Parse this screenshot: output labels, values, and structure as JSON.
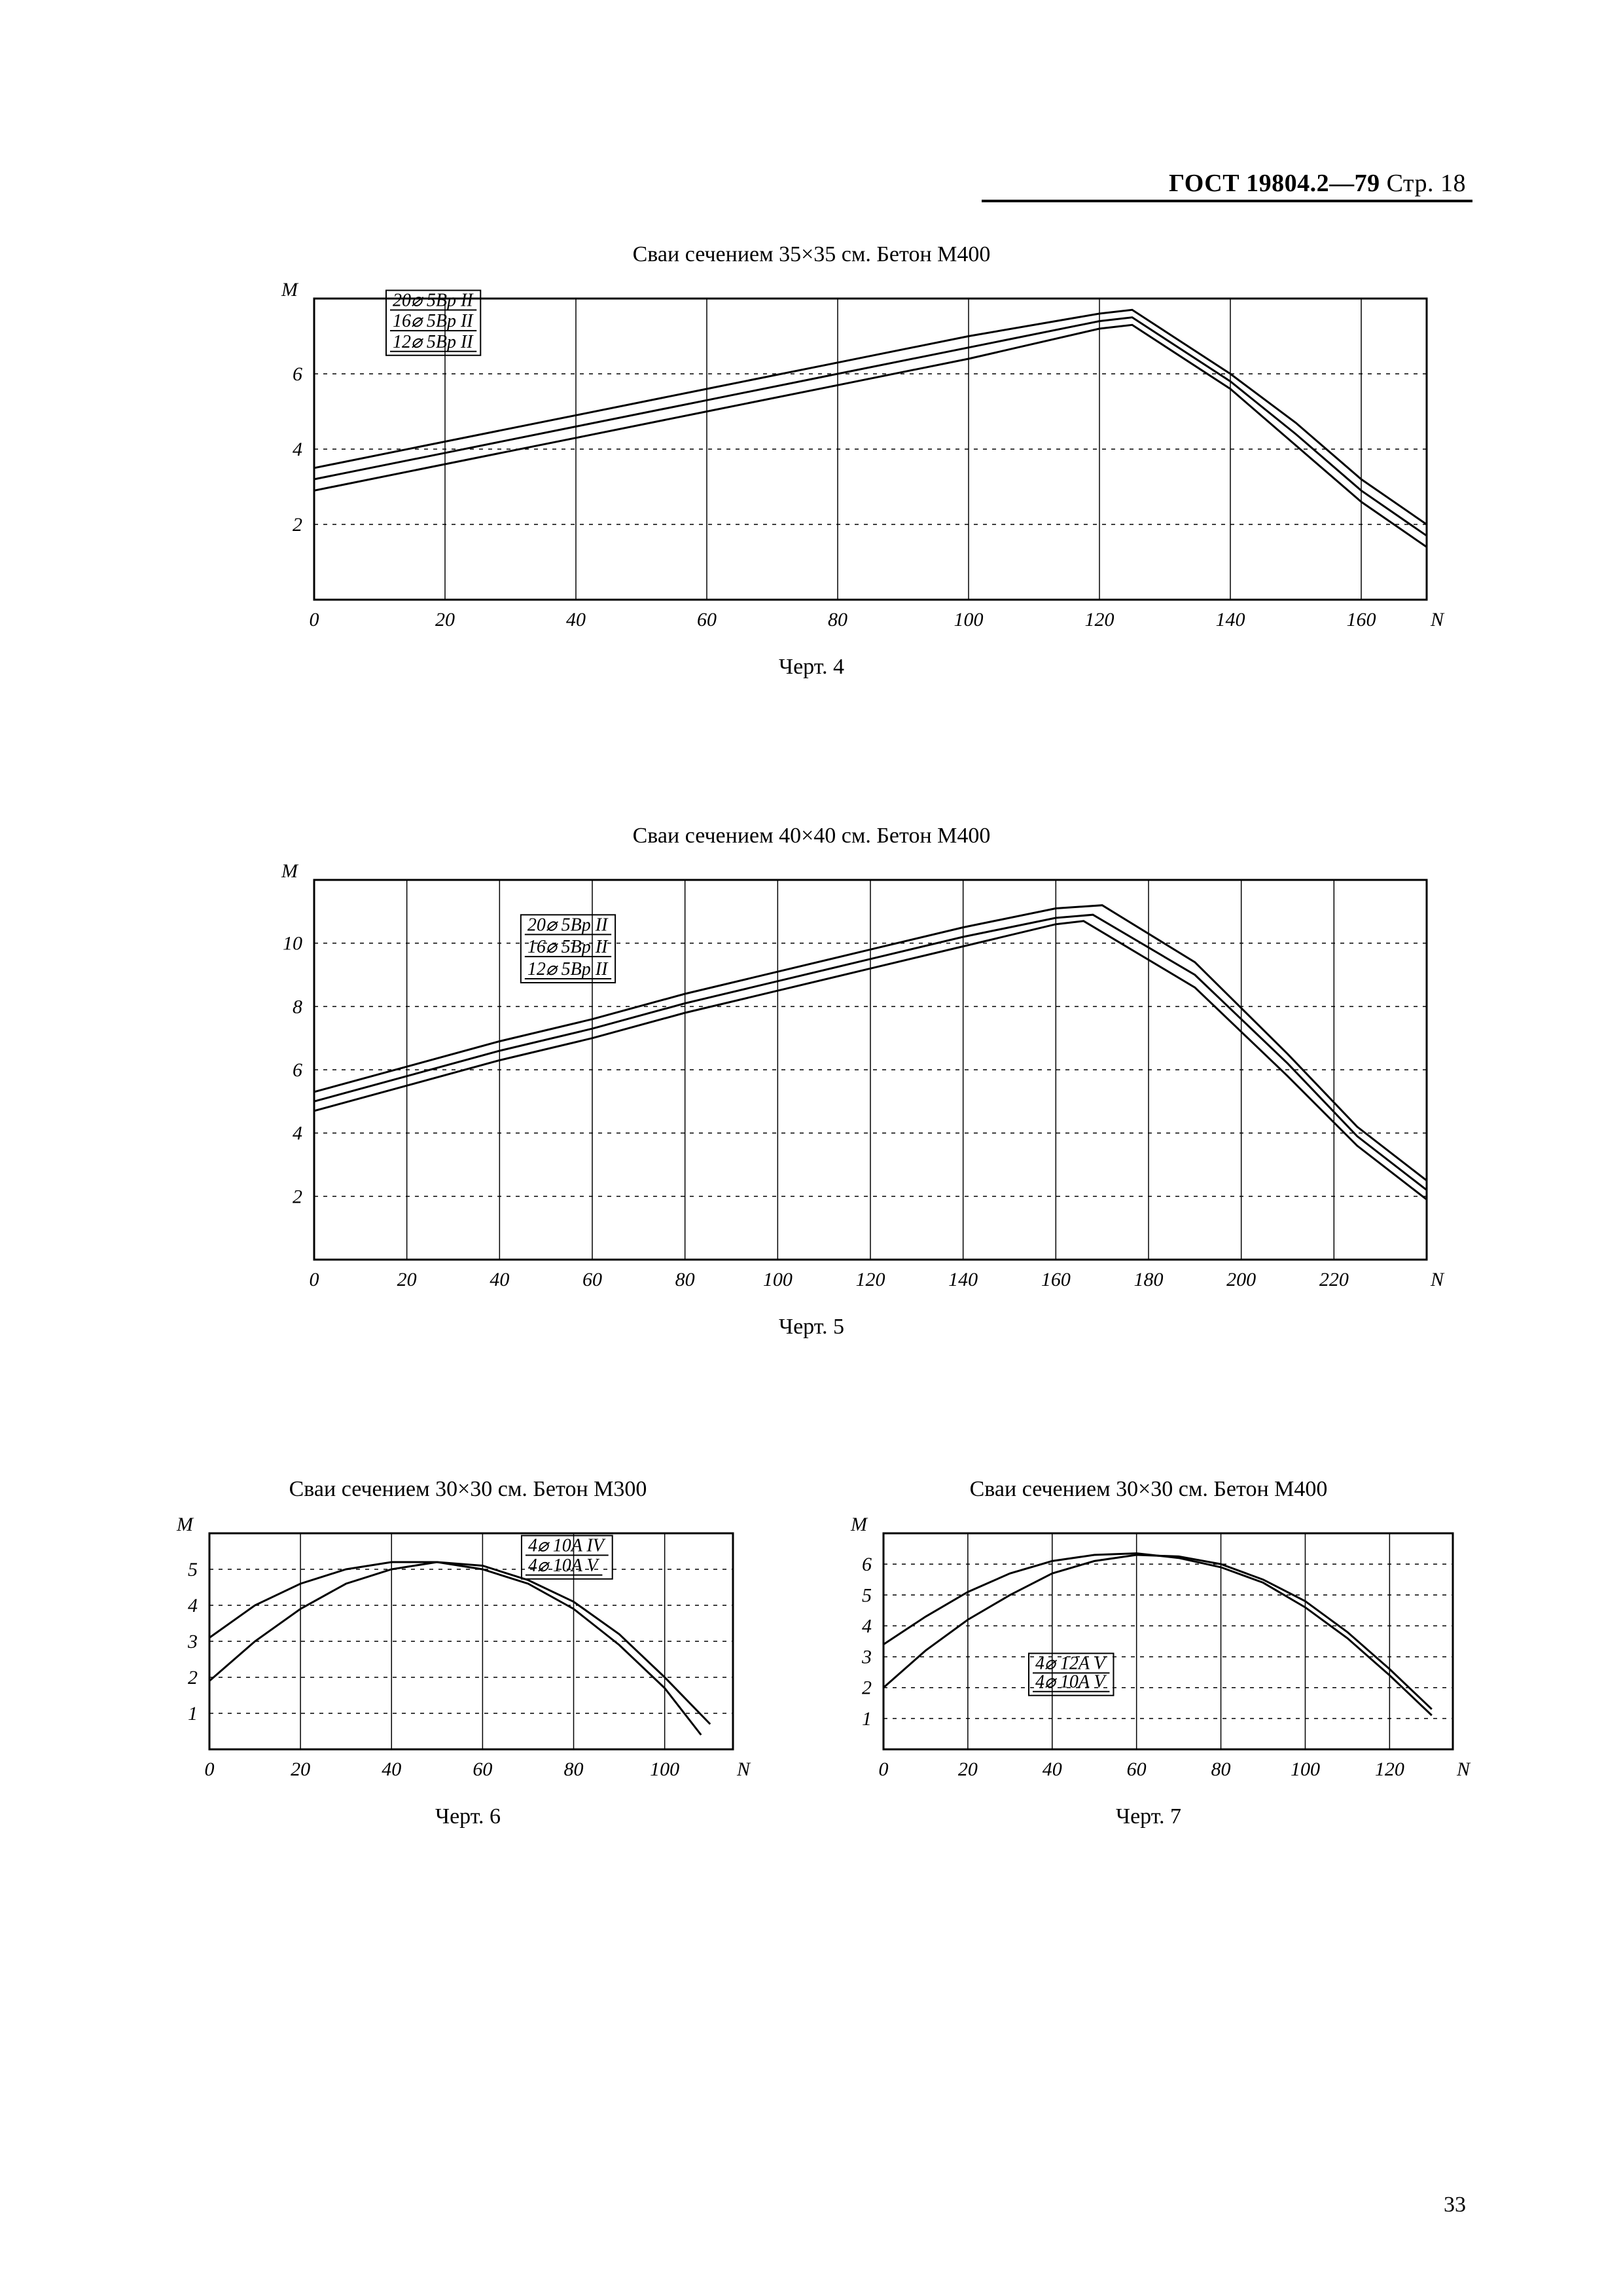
{
  "header": {
    "standard": "ГОСТ 19804.2—79",
    "page_label": "Стр. 18"
  },
  "page_number": "33",
  "colors": {
    "ink": "#000000",
    "paper": "#ffffff",
    "grid": "#000000"
  },
  "chart4": {
    "type": "line",
    "title": "Сваи сечением 35×35 см. Бетон М400",
    "caption": "Черт. 4",
    "x_axis": {
      "label": "N",
      "min": 0,
      "max": 170,
      "ticks": [
        0,
        20,
        40,
        60,
        80,
        100,
        120,
        140,
        160
      ]
    },
    "y_axis": {
      "label": "M",
      "min": 0,
      "max": 8,
      "ticks": [
        2,
        4,
        6
      ]
    },
    "grid_color": "#000000",
    "line_width": 3,
    "legend": {
      "x": 12,
      "y_top": 7.8,
      "row_h": 0.55,
      "items": [
        "20⌀ 5Вр II",
        "16⌀ 5Вр II",
        "12⌀ 5Вр II"
      ]
    },
    "series": [
      {
        "name": "20⌀5ВрII",
        "points": [
          [
            0,
            3.5
          ],
          [
            20,
            4.2
          ],
          [
            40,
            4.9
          ],
          [
            60,
            5.6
          ],
          [
            80,
            6.3
          ],
          [
            100,
            7.0
          ],
          [
            120,
            7.6
          ],
          [
            125,
            7.7
          ],
          [
            140,
            6.0
          ],
          [
            150,
            4.7
          ],
          [
            160,
            3.2
          ],
          [
            170,
            2.0
          ]
        ]
      },
      {
        "name": "16⌀5ВрII",
        "points": [
          [
            0,
            3.2
          ],
          [
            20,
            3.9
          ],
          [
            40,
            4.6
          ],
          [
            60,
            5.3
          ],
          [
            80,
            6.0
          ],
          [
            100,
            6.7
          ],
          [
            120,
            7.4
          ],
          [
            125,
            7.5
          ],
          [
            140,
            5.8
          ],
          [
            150,
            4.4
          ],
          [
            160,
            2.9
          ],
          [
            170,
            1.7
          ]
        ]
      },
      {
        "name": "12⌀5ВрII",
        "points": [
          [
            0,
            2.9
          ],
          [
            20,
            3.6
          ],
          [
            40,
            4.3
          ],
          [
            60,
            5.0
          ],
          [
            80,
            5.7
          ],
          [
            100,
            6.4
          ],
          [
            120,
            7.2
          ],
          [
            125,
            7.3
          ],
          [
            140,
            5.6
          ],
          [
            150,
            4.1
          ],
          [
            160,
            2.6
          ],
          [
            170,
            1.4
          ]
        ]
      }
    ]
  },
  "chart5": {
    "type": "line",
    "title": "Сваи сечением 40×40 см. Бетон М400",
    "caption": "Черт. 5",
    "x_axis": {
      "label": "N",
      "min": 0,
      "max": 240,
      "ticks": [
        0,
        20,
        40,
        60,
        80,
        100,
        120,
        140,
        160,
        180,
        200,
        220
      ]
    },
    "y_axis": {
      "label": "M",
      "min": 0,
      "max": 12,
      "ticks": [
        2,
        4,
        6,
        8,
        10
      ]
    },
    "grid_color": "#000000",
    "line_width": 3,
    "legend": {
      "x": 46,
      "y_top": 10.4,
      "row_h": 0.7,
      "items": [
        "20⌀ 5Вр II",
        "16⌀ 5Вр II",
        "12⌀ 5Вр II"
      ]
    },
    "series": [
      {
        "name": "20⌀5ВрII",
        "points": [
          [
            0,
            5.3
          ],
          [
            20,
            6.1
          ],
          [
            40,
            6.9
          ],
          [
            60,
            7.6
          ],
          [
            80,
            8.4
          ],
          [
            100,
            9.1
          ],
          [
            120,
            9.8
          ],
          [
            140,
            10.5
          ],
          [
            160,
            11.1
          ],
          [
            170,
            11.2
          ],
          [
            190,
            9.4
          ],
          [
            210,
            6.5
          ],
          [
            225,
            4.2
          ],
          [
            240,
            2.5
          ]
        ]
      },
      {
        "name": "16⌀5ВрII",
        "points": [
          [
            0,
            5.0
          ],
          [
            20,
            5.8
          ],
          [
            40,
            6.6
          ],
          [
            60,
            7.3
          ],
          [
            80,
            8.1
          ],
          [
            100,
            8.8
          ],
          [
            120,
            9.5
          ],
          [
            140,
            10.2
          ],
          [
            160,
            10.8
          ],
          [
            168,
            10.9
          ],
          [
            190,
            9.0
          ],
          [
            210,
            6.2
          ],
          [
            225,
            3.9
          ],
          [
            240,
            2.2
          ]
        ]
      },
      {
        "name": "12⌀5ВрII",
        "points": [
          [
            0,
            4.7
          ],
          [
            20,
            5.5
          ],
          [
            40,
            6.3
          ],
          [
            60,
            7.0
          ],
          [
            80,
            7.8
          ],
          [
            100,
            8.5
          ],
          [
            120,
            9.2
          ],
          [
            140,
            9.9
          ],
          [
            160,
            10.6
          ],
          [
            166,
            10.7
          ],
          [
            190,
            8.6
          ],
          [
            210,
            5.8
          ],
          [
            225,
            3.6
          ],
          [
            240,
            1.9
          ]
        ]
      }
    ]
  },
  "chart6": {
    "type": "line",
    "title": "Сваи сечением 30×30 см. Бетон М300",
    "caption": "Черт. 6",
    "x_axis": {
      "label": "N",
      "min": 0,
      "max": 115,
      "ticks": [
        0,
        20,
        40,
        60,
        80,
        100
      ]
    },
    "y_axis": {
      "label": "M",
      "min": 0,
      "max": 6,
      "ticks": [
        1,
        2,
        3,
        4,
        5
      ]
    },
    "grid_color": "#000000",
    "line_width": 3,
    "legend": {
      "x": 70,
      "y_top": 5.5,
      "row_h": 0.55,
      "items": [
        "4⌀ 10A IV",
        "4⌀ 10A V"
      ]
    },
    "series": [
      {
        "name": "4⌀10AIV",
        "points": [
          [
            0,
            3.1
          ],
          [
            10,
            4.0
          ],
          [
            20,
            4.6
          ],
          [
            30,
            5.0
          ],
          [
            40,
            5.2
          ],
          [
            50,
            5.2
          ],
          [
            60,
            5.0
          ],
          [
            70,
            4.6
          ],
          [
            80,
            3.9
          ],
          [
            90,
            2.9
          ],
          [
            100,
            1.7
          ],
          [
            108,
            0.4
          ]
        ]
      },
      {
        "name": "4⌀10AV",
        "points": [
          [
            0,
            1.9
          ],
          [
            10,
            3.0
          ],
          [
            20,
            3.9
          ],
          [
            30,
            4.6
          ],
          [
            40,
            5.0
          ],
          [
            50,
            5.2
          ],
          [
            60,
            5.1
          ],
          [
            70,
            4.7
          ],
          [
            80,
            4.1
          ],
          [
            90,
            3.2
          ],
          [
            100,
            2.0
          ],
          [
            110,
            0.7
          ]
        ]
      }
    ]
  },
  "chart7": {
    "type": "line",
    "title": "Сваи сечением 30×30 см. Бетон М400",
    "caption": "Черт. 7",
    "x_axis": {
      "label": "N",
      "min": 0,
      "max": 135,
      "ticks": [
        0,
        20,
        40,
        60,
        80,
        100,
        120
      ]
    },
    "y_axis": {
      "label": "M",
      "min": 0,
      "max": 7,
      "ticks": [
        1,
        2,
        3,
        4,
        5,
        6
      ]
    },
    "grid_color": "#000000",
    "line_width": 3,
    "legend": {
      "x": 36,
      "y_top": 2.6,
      "row_h": 0.6,
      "items": [
        "4⌀ 12A V",
        "4⌀ 10A V"
      ]
    },
    "series": [
      {
        "name": "4⌀12AV",
        "points": [
          [
            0,
            3.4
          ],
          [
            10,
            4.3
          ],
          [
            20,
            5.1
          ],
          [
            30,
            5.7
          ],
          [
            40,
            6.1
          ],
          [
            50,
            6.3
          ],
          [
            60,
            6.35
          ],
          [
            70,
            6.2
          ],
          [
            80,
            5.9
          ],
          [
            90,
            5.4
          ],
          [
            100,
            4.6
          ],
          [
            110,
            3.6
          ],
          [
            120,
            2.4
          ],
          [
            130,
            1.1
          ]
        ]
      },
      {
        "name": "4⌀10AV",
        "points": [
          [
            0,
            2.0
          ],
          [
            10,
            3.2
          ],
          [
            20,
            4.2
          ],
          [
            30,
            5.0
          ],
          [
            40,
            5.7
          ],
          [
            50,
            6.1
          ],
          [
            60,
            6.3
          ],
          [
            70,
            6.25
          ],
          [
            80,
            6.0
          ],
          [
            90,
            5.5
          ],
          [
            100,
            4.8
          ],
          [
            110,
            3.8
          ],
          [
            120,
            2.6
          ],
          [
            130,
            1.3
          ]
        ]
      }
    ]
  }
}
